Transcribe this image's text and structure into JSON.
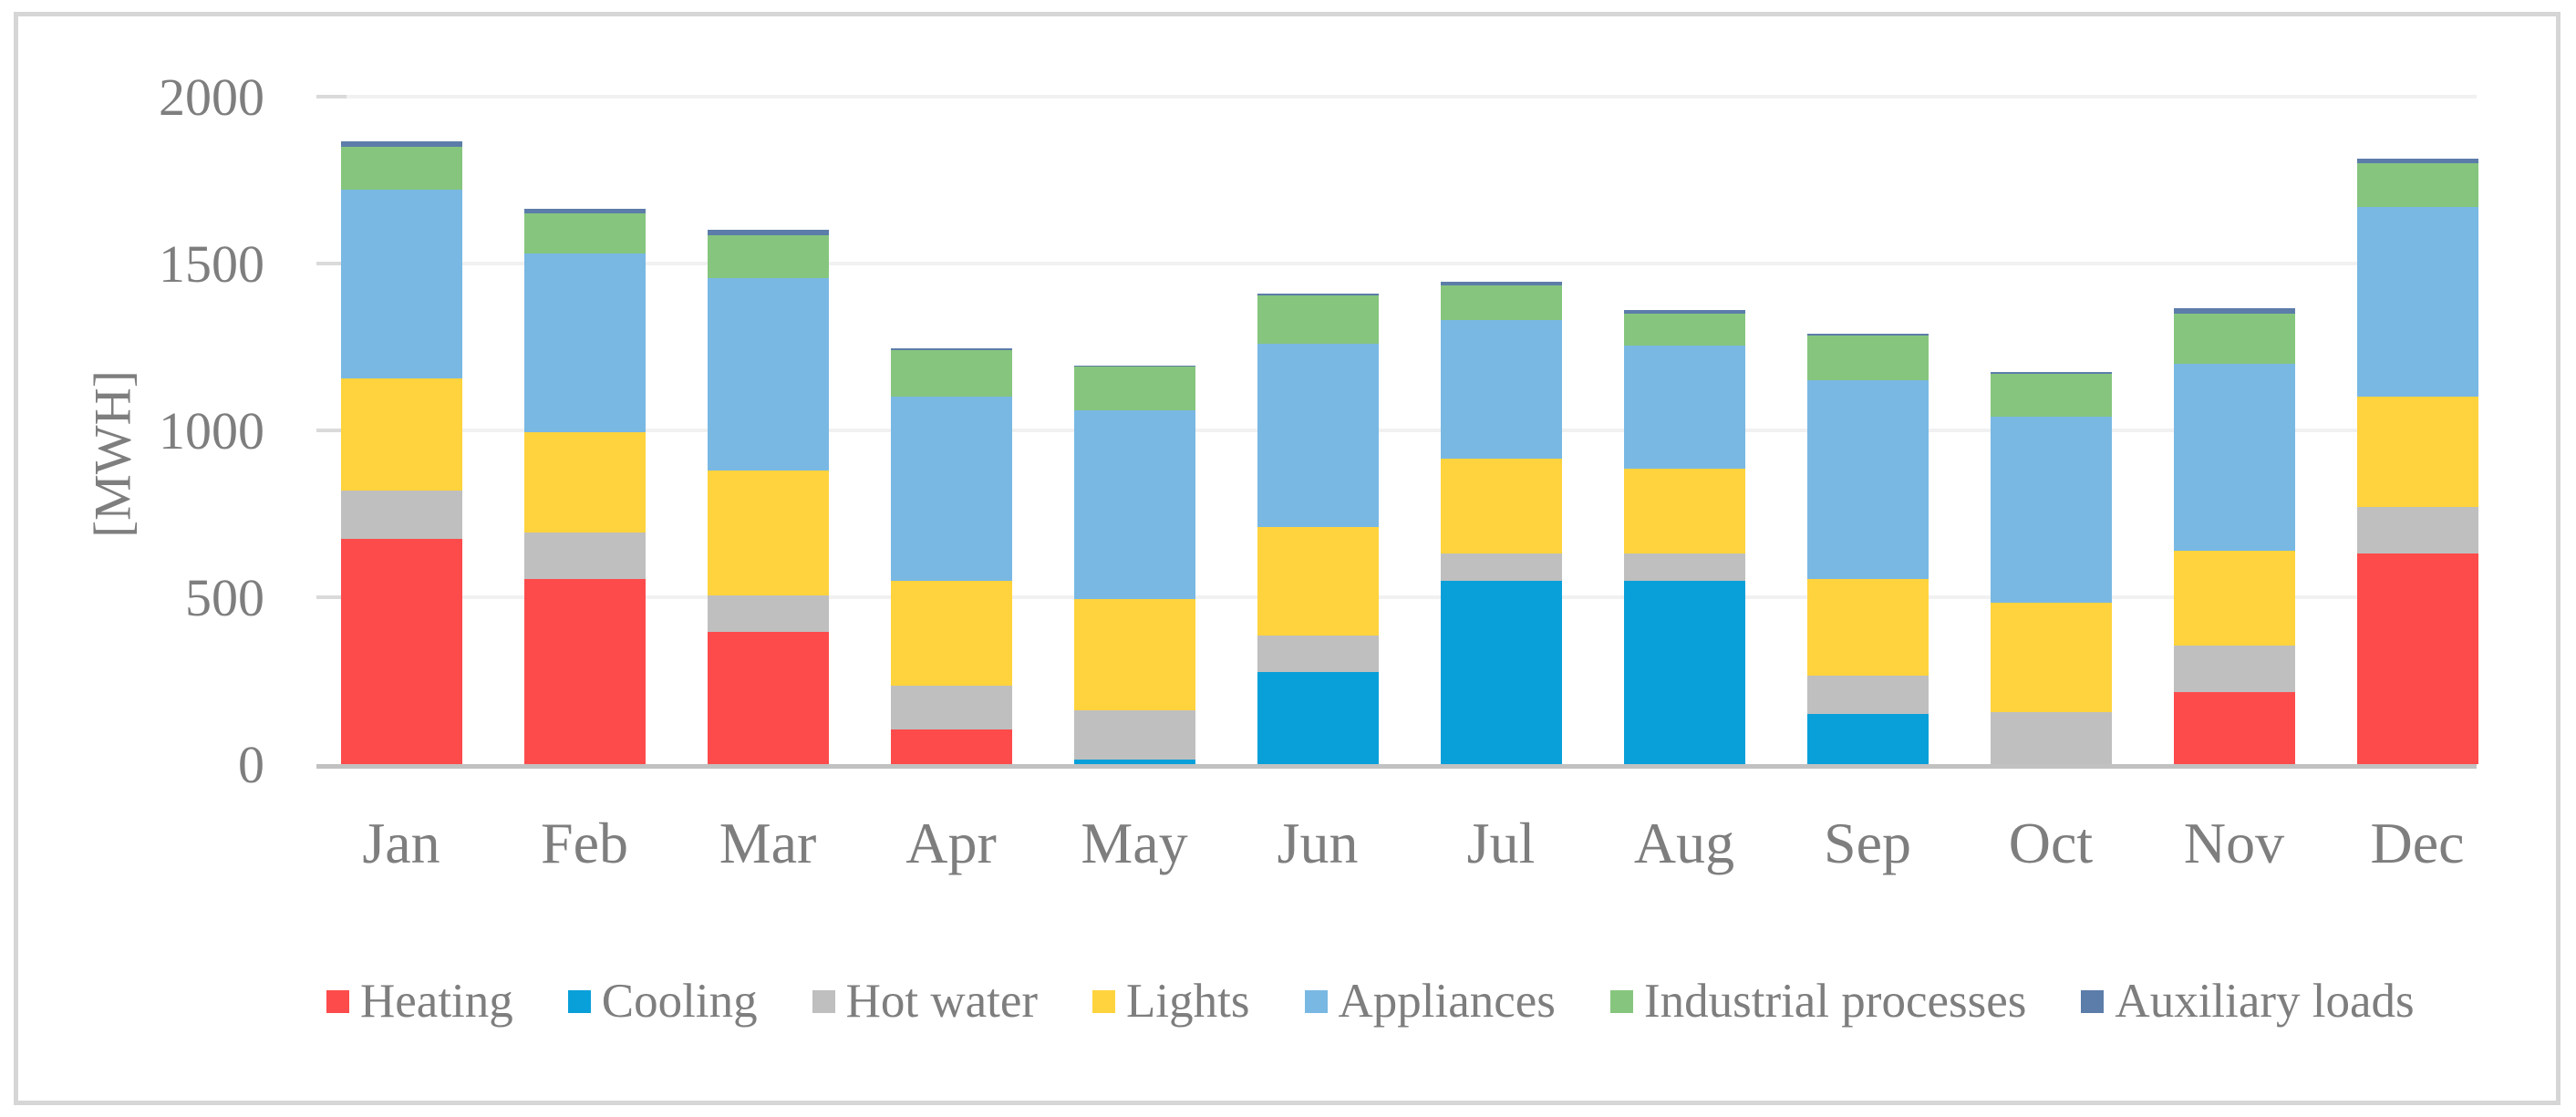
{
  "figure": {
    "background_color": "#FFFFFF",
    "frame_border_color": "#D6D6D6",
    "text_color": "#7E7E7E",
    "gridline_color": "#F1F1F1",
    "axis_line_color": "#C1C1C1"
  },
  "y_axis": {
    "title": "[MWH]",
    "tick_labels": [
      "0",
      "500",
      "1000",
      "1500",
      "2000"
    ],
    "tick_values": [
      0,
      500,
      1000,
      1500,
      2000
    ]
  },
  "chart_data": {
    "type": "bar",
    "stacked": true,
    "title": "",
    "xlabel": "",
    "ylabel": "[MWH]",
    "ylim": [
      0,
      2000
    ],
    "grid": true,
    "legend_position": "bottom",
    "categories": [
      "Jan",
      "Feb",
      "Mar",
      "Apr",
      "May",
      "Jun",
      "Jul",
      "Aug",
      "Sep",
      "Oct",
      "Nov",
      "Dec"
    ],
    "series": [
      {
        "name": "Heating",
        "color": "#FD4B4B",
        "values": [
          675,
          555,
          395,
          105,
          0,
          0,
          0,
          0,
          0,
          0,
          215,
          630
        ]
      },
      {
        "name": "Cooling",
        "color": "#09A0D9",
        "values": [
          0,
          0,
          0,
          0,
          15,
          275,
          550,
          550,
          150,
          0,
          0,
          0
        ]
      },
      {
        "name": "Hot water",
        "color": "#BFBFBF",
        "values": [
          145,
          140,
          110,
          130,
          145,
          110,
          80,
          80,
          115,
          155,
          140,
          140
        ]
      },
      {
        "name": "Lights",
        "color": "#FFD33D",
        "values": [
          335,
          300,
          375,
          315,
          335,
          325,
          285,
          255,
          290,
          330,
          285,
          330
        ]
      },
      {
        "name": "Appliances",
        "color": "#79B8E3",
        "values": [
          565,
          535,
          575,
          550,
          565,
          550,
          415,
          370,
          595,
          555,
          560,
          570
        ]
      },
      {
        "name": "Industrial processes",
        "color": "#86C57E",
        "values": [
          130,
          120,
          130,
          140,
          130,
          145,
          105,
          95,
          135,
          130,
          150,
          130
        ]
      },
      {
        "name": "Auxiliary loads",
        "color": "#5C7DA9",
        "values": [
          15,
          15,
          15,
          5,
          5,
          5,
          10,
          10,
          5,
          5,
          15,
          15
        ]
      }
    ]
  },
  "legend": {
    "items": [
      {
        "label": "Heating",
        "color": "#FD4B4B"
      },
      {
        "label": "Cooling",
        "color": "#09A0D9"
      },
      {
        "label": "Hot water",
        "color": "#BFBFBF"
      },
      {
        "label": "Lights",
        "color": "#FFD33D"
      },
      {
        "label": "Appliances",
        "color": "#79B8E3"
      },
      {
        "label": "Industrial processes",
        "color": "#86C57E"
      },
      {
        "label": "Auxiliary loads",
        "color": "#5C7DA9"
      }
    ]
  }
}
